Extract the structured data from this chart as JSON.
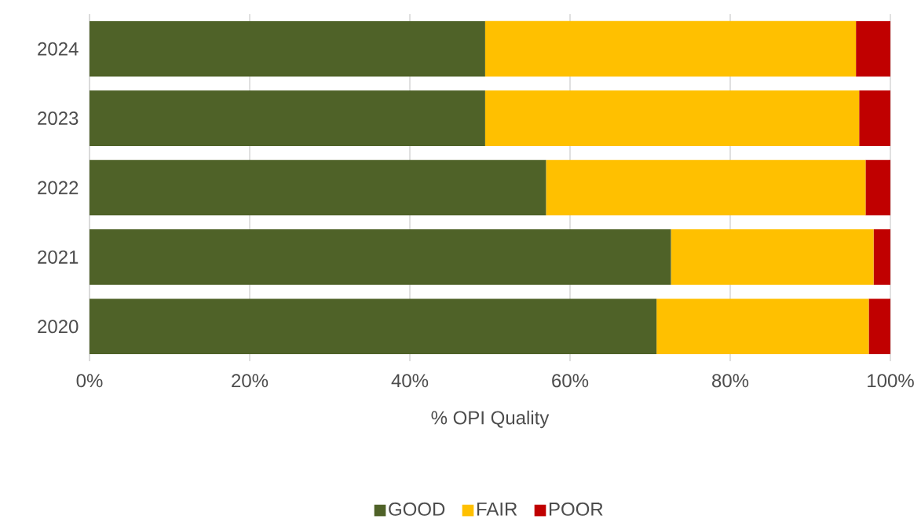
{
  "chart_data": {
    "type": "bar",
    "orientation": "horizontal",
    "stacked": true,
    "xlabel": "% OPI Quality",
    "categories": [
      "2024",
      "2023",
      "2022",
      "2021",
      "2020"
    ],
    "series": [
      {
        "name": "GOOD",
        "color": "#4f6228",
        "values": [
          49.4,
          49.4,
          57.0,
          72.6,
          70.8
        ]
      },
      {
        "name": "FAIR",
        "color": "#ffc000",
        "values": [
          46.3,
          46.7,
          39.9,
          25.3,
          26.5
        ]
      },
      {
        "name": "POOR",
        "color": "#c00000",
        "values": [
          4.3,
          3.9,
          3.1,
          2.1,
          2.7
        ]
      }
    ],
    "xlim": [
      0,
      100
    ],
    "xticks": [
      {
        "value": 0,
        "label": "0%"
      },
      {
        "value": 20,
        "label": "20%"
      },
      {
        "value": 40,
        "label": "40%"
      },
      {
        "value": 60,
        "label": "60%"
      },
      {
        "value": 80,
        "label": "80%"
      },
      {
        "value": 100,
        "label": "100%"
      }
    ],
    "grid": "x",
    "legend": "bottom"
  }
}
